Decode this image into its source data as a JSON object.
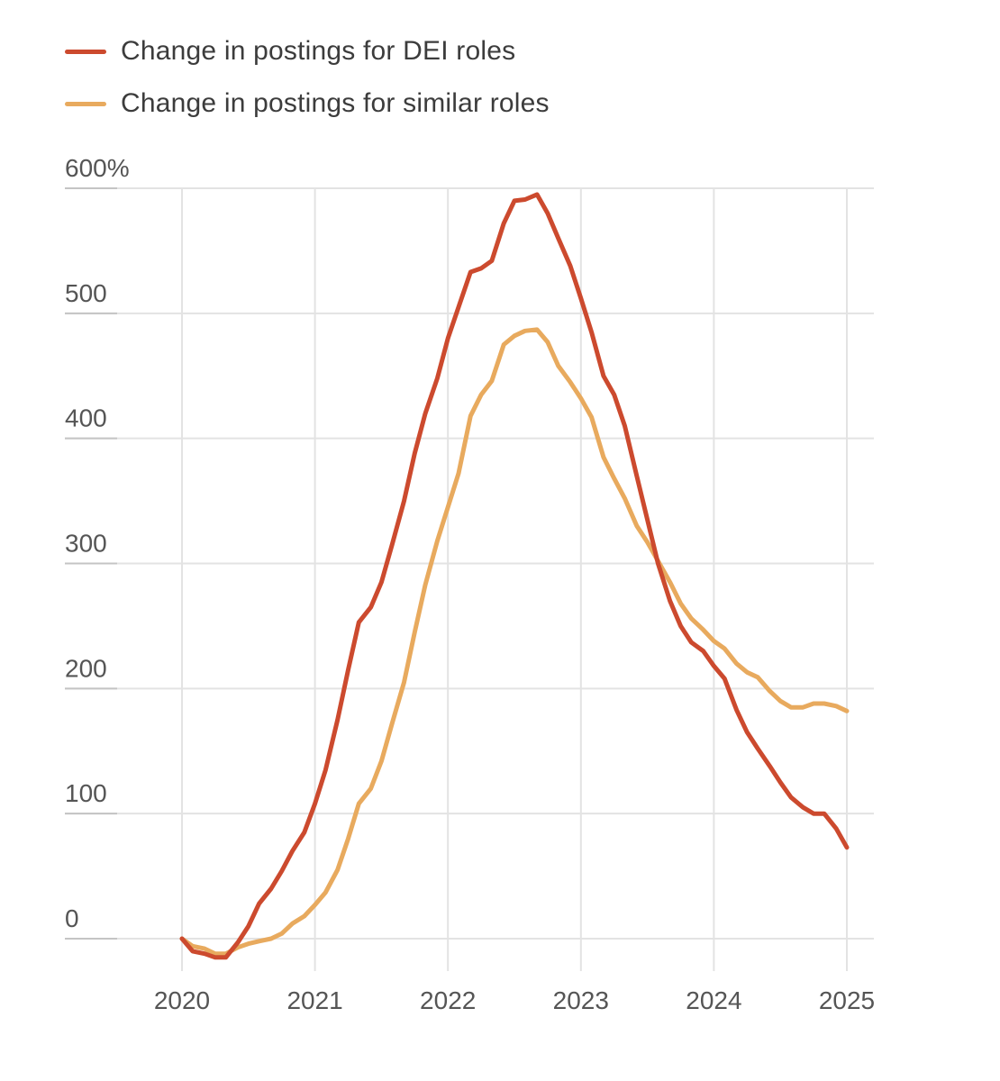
{
  "legend": {
    "items": [
      {
        "label": "Change in postings for DEI roles",
        "color": "#cc4a2e"
      },
      {
        "label": "Change in postings for similar roles",
        "color": "#e8aa5e"
      }
    ]
  },
  "chart_data": {
    "type": "line",
    "title": "",
    "xlabel": "",
    "ylabel": "",
    "xlim": [
      2020,
      2025
    ],
    "ylim": [
      0,
      600
    ],
    "y_ticks": [
      {
        "value": 600,
        "label": "600%"
      },
      {
        "value": 500,
        "label": "500"
      },
      {
        "value": 400,
        "label": "400"
      },
      {
        "value": 300,
        "label": "300"
      },
      {
        "value": 200,
        "label": "200"
      },
      {
        "value": 100,
        "label": "100"
      },
      {
        "value": 0,
        "label": "0"
      }
    ],
    "x_ticks": [
      {
        "value": 2020,
        "label": "2020"
      },
      {
        "value": 2021,
        "label": "2021"
      },
      {
        "value": 2022,
        "label": "2022"
      },
      {
        "value": 2023,
        "label": "2023"
      },
      {
        "value": 2024,
        "label": "2024"
      },
      {
        "value": 2025,
        "label": "2025"
      }
    ],
    "grid": true,
    "legend_position": "top-left",
    "series": [
      {
        "name": "Change in postings for DEI roles",
        "color": "#cc4a2e",
        "points": [
          [
            2020.0,
            0
          ],
          [
            2020.08,
            -10
          ],
          [
            2020.17,
            -12
          ],
          [
            2020.25,
            -15
          ],
          [
            2020.33,
            -15
          ],
          [
            2020.42,
            -3
          ],
          [
            2020.5,
            10
          ],
          [
            2020.58,
            28
          ],
          [
            2020.67,
            40
          ],
          [
            2020.75,
            54
          ],
          [
            2020.83,
            70
          ],
          [
            2020.92,
            85
          ],
          [
            2021.0,
            108
          ],
          [
            2021.08,
            135
          ],
          [
            2021.17,
            175
          ],
          [
            2021.25,
            215
          ],
          [
            2021.33,
            253
          ],
          [
            2021.42,
            265
          ],
          [
            2021.5,
            285
          ],
          [
            2021.58,
            315
          ],
          [
            2021.67,
            350
          ],
          [
            2021.75,
            388
          ],
          [
            2021.83,
            420
          ],
          [
            2021.92,
            448
          ],
          [
            2022.0,
            480
          ],
          [
            2022.08,
            505
          ],
          [
            2022.17,
            533
          ],
          [
            2022.25,
            536
          ],
          [
            2022.33,
            542
          ],
          [
            2022.42,
            572
          ],
          [
            2022.5,
            590
          ],
          [
            2022.58,
            591
          ],
          [
            2022.67,
            595
          ],
          [
            2022.75,
            580
          ],
          [
            2022.83,
            560
          ],
          [
            2022.92,
            538
          ],
          [
            2023.0,
            512
          ],
          [
            2023.08,
            485
          ],
          [
            2023.17,
            450
          ],
          [
            2023.25,
            435
          ],
          [
            2023.33,
            410
          ],
          [
            2023.42,
            370
          ],
          [
            2023.5,
            335
          ],
          [
            2023.58,
            300
          ],
          [
            2023.67,
            270
          ],
          [
            2023.75,
            250
          ],
          [
            2023.83,
            237
          ],
          [
            2023.92,
            230
          ],
          [
            2024.0,
            218
          ],
          [
            2024.08,
            208
          ],
          [
            2024.17,
            183
          ],
          [
            2024.25,
            165
          ],
          [
            2024.33,
            152
          ],
          [
            2024.42,
            138
          ],
          [
            2024.5,
            125
          ],
          [
            2024.58,
            113
          ],
          [
            2024.67,
            105
          ],
          [
            2024.75,
            100
          ],
          [
            2024.83,
            100
          ],
          [
            2024.92,
            88
          ],
          [
            2025.0,
            73
          ]
        ]
      },
      {
        "name": "Change in postings for similar roles",
        "color": "#e8aa5e",
        "points": [
          [
            2020.0,
            0
          ],
          [
            2020.08,
            -6
          ],
          [
            2020.17,
            -8
          ],
          [
            2020.25,
            -12
          ],
          [
            2020.33,
            -12
          ],
          [
            2020.42,
            -7
          ],
          [
            2020.5,
            -4
          ],
          [
            2020.58,
            -2
          ],
          [
            2020.67,
            0
          ],
          [
            2020.75,
            4
          ],
          [
            2020.83,
            12
          ],
          [
            2020.92,
            18
          ],
          [
            2021.0,
            27
          ],
          [
            2021.08,
            37
          ],
          [
            2021.17,
            55
          ],
          [
            2021.25,
            80
          ],
          [
            2021.33,
            108
          ],
          [
            2021.42,
            120
          ],
          [
            2021.5,
            142
          ],
          [
            2021.58,
            172
          ],
          [
            2021.67,
            205
          ],
          [
            2021.75,
            245
          ],
          [
            2021.83,
            283
          ],
          [
            2021.92,
            318
          ],
          [
            2022.0,
            345
          ],
          [
            2022.08,
            372
          ],
          [
            2022.17,
            418
          ],
          [
            2022.25,
            435
          ],
          [
            2022.33,
            446
          ],
          [
            2022.42,
            475
          ],
          [
            2022.5,
            482
          ],
          [
            2022.58,
            486
          ],
          [
            2022.67,
            487
          ],
          [
            2022.75,
            477
          ],
          [
            2022.83,
            458
          ],
          [
            2022.92,
            445
          ],
          [
            2023.0,
            432
          ],
          [
            2023.08,
            417
          ],
          [
            2023.17,
            385
          ],
          [
            2023.25,
            368
          ],
          [
            2023.33,
            352
          ],
          [
            2023.42,
            330
          ],
          [
            2023.5,
            317
          ],
          [
            2023.58,
            302
          ],
          [
            2023.67,
            285
          ],
          [
            2023.75,
            268
          ],
          [
            2023.83,
            256
          ],
          [
            2023.92,
            247
          ],
          [
            2024.0,
            238
          ],
          [
            2024.08,
            232
          ],
          [
            2024.17,
            220
          ],
          [
            2024.25,
            213
          ],
          [
            2024.33,
            209
          ],
          [
            2024.42,
            198
          ],
          [
            2024.5,
            190
          ],
          [
            2024.58,
            185
          ],
          [
            2024.67,
            185
          ],
          [
            2024.75,
            188
          ],
          [
            2024.83,
            188
          ],
          [
            2024.92,
            186
          ],
          [
            2025.0,
            182
          ]
        ]
      }
    ]
  }
}
